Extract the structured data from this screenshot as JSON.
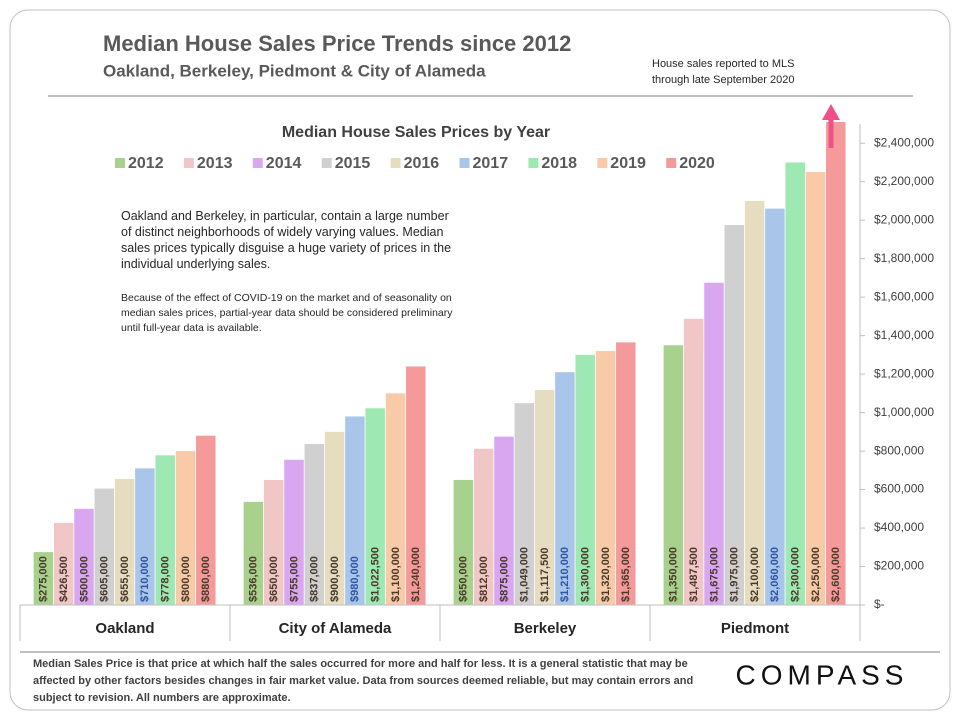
{
  "title": "Median House Sales Price Trends since 2012",
  "subtitle": "Oakland,  Berkeley, Piedmont & City of Alameda",
  "note": [
    "House sales reported to MLS",
    "through late September 2020"
  ],
  "paragraphs": [
    "Oakland and Berkeley, in particular, contain a large number of distinct neighborhoods of widely varying values. Median sales prices typically disguise a huge variety of prices in the individual underlying sales.",
    "Because of the effect of COVID-19 on the market and of seasonality on median sales prices, partial-year data should be considered preliminary until full-year data is available."
  ],
  "footer": "Median Sales Price is that price at which half the sales occurred for more and half for less. It is a general statistic that may be affected by other factors besides changes in fair market value. Data from sources deemed reliable, but may contain errors and subject to revision.  All numbers are approximate.",
  "logo": "COMPASS",
  "chart_data": {
    "type": "bar",
    "title": "Median House Sales Prices by Year",
    "categories": [
      "Oakland",
      "City of Alameda",
      "Berkeley",
      "Piedmont"
    ],
    "series": [
      {
        "name": "2012",
        "color": "#a9d18e",
        "values": [
          275000,
          536000,
          650000,
          1350000
        ],
        "value_labels": [
          "$275,000",
          "$536,000",
          "$650,000",
          "$1,350,000"
        ]
      },
      {
        "name": "2013",
        "color": "#f0c6c6",
        "values": [
          426500,
          650000,
          812000,
          1487500
        ],
        "value_labels": [
          "$426,500",
          "$650,000",
          "$812,000",
          "$1,487,500"
        ]
      },
      {
        "name": "2014",
        "color": "#d9a6f0",
        "values": [
          500000,
          755000,
          875000,
          1675000
        ],
        "value_labels": [
          "$500,000",
          "$755,000",
          "$875,000",
          "$1,675,000"
        ]
      },
      {
        "name": "2015",
        "color": "#d0d0d0",
        "values": [
          605000,
          837000,
          1049000,
          1975000
        ],
        "value_labels": [
          "$605,000",
          "$837,000",
          "$1,049,000",
          "$1,975,000"
        ]
      },
      {
        "name": "2016",
        "color": "#e6dcc0",
        "values": [
          655000,
          900000,
          1117500,
          2100000
        ],
        "value_labels": [
          "$655,000",
          "$900,000",
          "$1,117,500",
          "$2,100,000"
        ]
      },
      {
        "name": "2017",
        "color": "#a9c6ea",
        "values": [
          710000,
          980000,
          1210000,
          2060000
        ],
        "value_labels": [
          "$710,000",
          "$980,000",
          "$1,210,000",
          "$2,060,000"
        ]
      },
      {
        "name": "2018",
        "color": "#9ee8b4",
        "values": [
          778000,
          1022500,
          1300000,
          2300000
        ],
        "value_labels": [
          "$778,000",
          "$1,022,500",
          "$1,300,000",
          "$2,300,000"
        ]
      },
      {
        "name": "2019",
        "color": "#f8caa8",
        "values": [
          800000,
          1100000,
          1320000,
          2250000
        ],
        "value_labels": [
          "$800,000",
          "$1,100,000",
          "$1,320,000",
          "$2,250,000"
        ]
      },
      {
        "name": "2020",
        "color": "#f59a9a",
        "values": [
          880000,
          1240000,
          1365000,
          2600000
        ],
        "value_labels": [
          "$880,000",
          "$1,240,000",
          "$1,365,000",
          "$2,600,000"
        ]
      }
    ],
    "ylim": [
      0,
      2500000
    ],
    "yticks": [
      {
        "value": 0,
        "label": "$-"
      },
      {
        "value": 200000,
        "label": "$200,000"
      },
      {
        "value": 400000,
        "label": "$400,000"
      },
      {
        "value": 600000,
        "label": "$600,000"
      },
      {
        "value": 800000,
        "label": "$800,000"
      },
      {
        "value": 1000000,
        "label": "$1,000,000"
      },
      {
        "value": 1200000,
        "label": "$1,200,000"
      },
      {
        "value": 1400000,
        "label": "$1,400,000"
      },
      {
        "value": 1600000,
        "label": "$1,600,000"
      },
      {
        "value": 1800000,
        "label": "$1,800,000"
      },
      {
        "value": 2000000,
        "label": "$2,000,000"
      },
      {
        "value": 2200000,
        "label": "$2,200,000"
      },
      {
        "value": 2400000,
        "label": "$2,400,000"
      }
    ],
    "legend": "top"
  }
}
